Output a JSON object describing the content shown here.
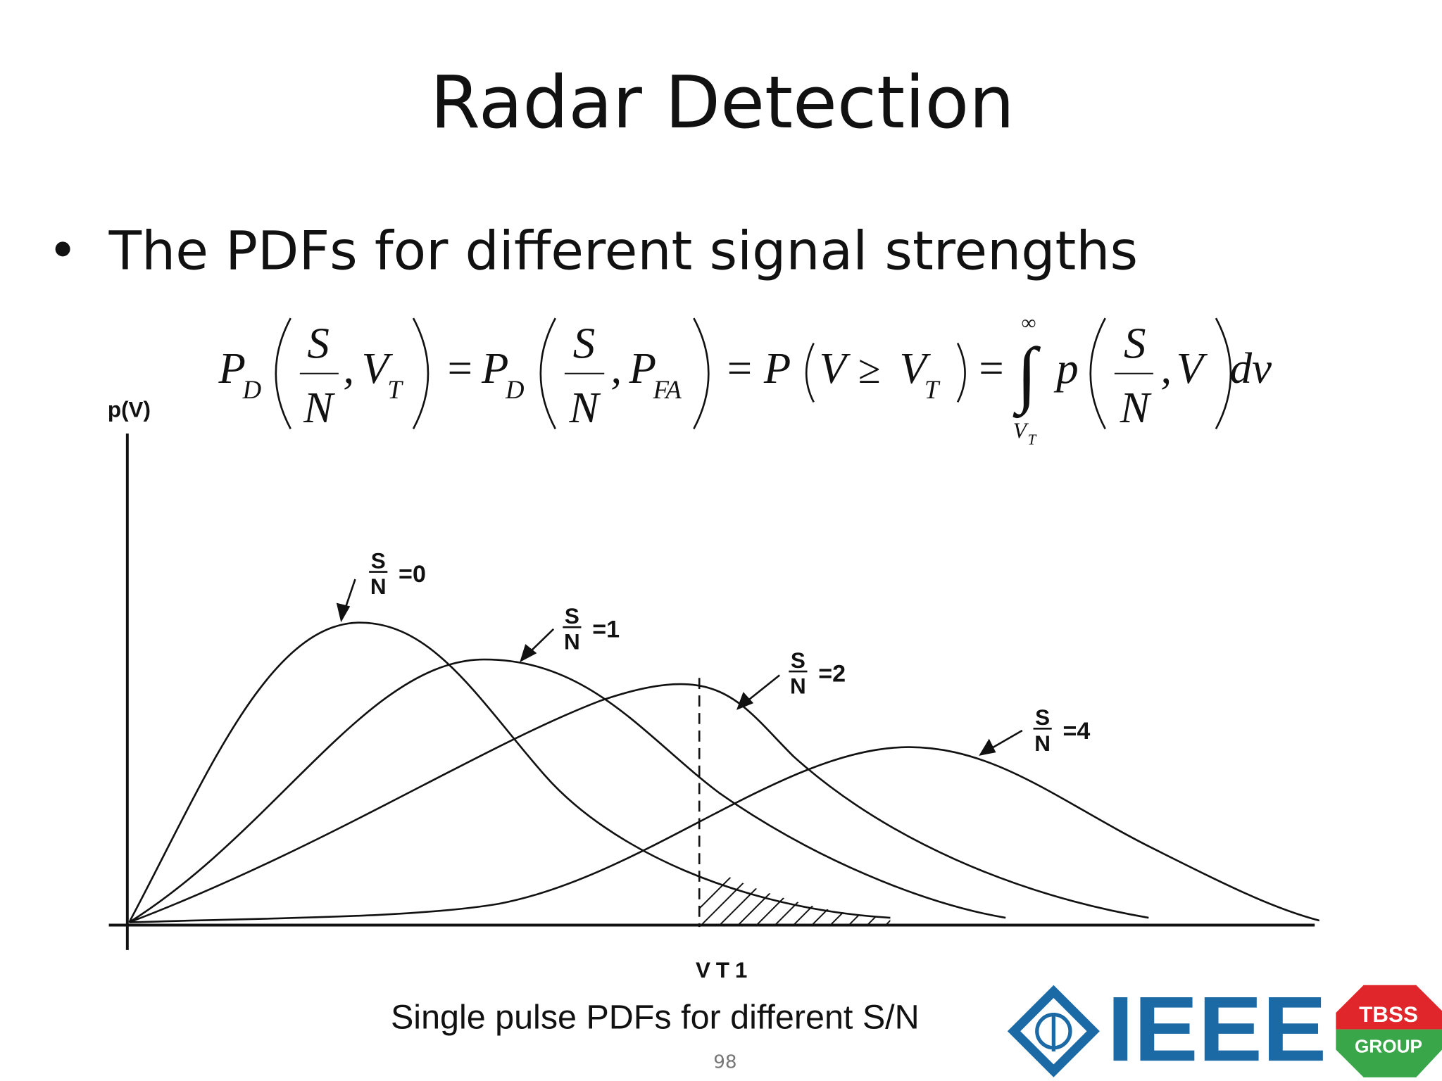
{
  "header": {
    "title": "Radar Detection"
  },
  "bullet": "The PDFs for different signal strengths",
  "equation": [
    "P",
    "D",
    "S",
    "N",
    ",",
    "V",
    "T",
    "=",
    "P",
    "D",
    "S",
    "N",
    ",",
    "P",
    "FA",
    "=",
    "P",
    "V",
    "≥",
    "V",
    "T",
    "=",
    "∞",
    "∫",
    "V",
    "T",
    "p",
    "S",
    "N",
    ",",
    "V",
    "dv"
  ],
  "figure": {
    "y_axis_label": "p(V)",
    "threshold_label": "VT1",
    "curve_labels": [
      {
        "numerator": "S",
        "denominator": "N",
        "value": "=0"
      },
      {
        "numerator": "S",
        "denominator": "N",
        "value": "=1"
      },
      {
        "numerator": "S",
        "denominator": "N",
        "value": "=2"
      },
      {
        "numerator": "S",
        "denominator": "N",
        "value": "=4"
      }
    ],
    "caption": "Single pulse PDFs for different S/N"
  },
  "page_number": "98",
  "logos": {
    "ieee": "IEEE",
    "tbss": "TBSS",
    "group": "GROUP"
  }
}
